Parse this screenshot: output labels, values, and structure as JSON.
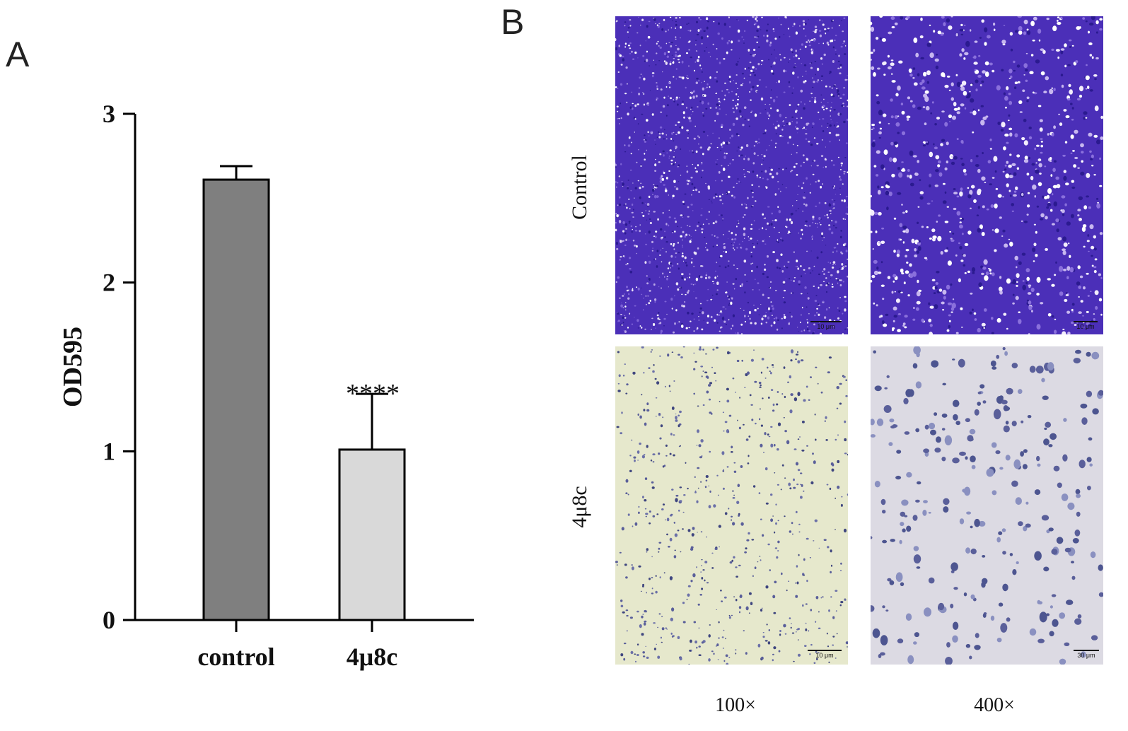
{
  "panels": {
    "a_label": "A",
    "b_label": "B"
  },
  "chart_data": {
    "type": "bar",
    "categories": [
      "control",
      "4μ8c"
    ],
    "values": [
      2.61,
      1.01
    ],
    "errors": [
      0.08,
      0.33
    ],
    "ylabel": "OD595",
    "ylim": [
      0,
      3
    ],
    "yticks": [
      "0",
      "1",
      "2",
      "3"
    ],
    "significance": [
      "",
      "****"
    ],
    "bar_colors": [
      "#7f7f7f",
      "#d9d9d9"
    ],
    "grid": false
  },
  "micrographs": {
    "row_labels": [
      "Control",
      "4μ8c"
    ],
    "col_labels": [
      "100×",
      "400×"
    ],
    "scale_bars": [
      "10 μm",
      "10 μm",
      "10 μm",
      "30 μm"
    ],
    "colors": {
      "crystal_violet": "#4b2fb8",
      "light_background_100x": "#e6e8cc",
      "light_background_400x": "#dcdae3",
      "cell_stain": "#5a5f9a"
    }
  }
}
